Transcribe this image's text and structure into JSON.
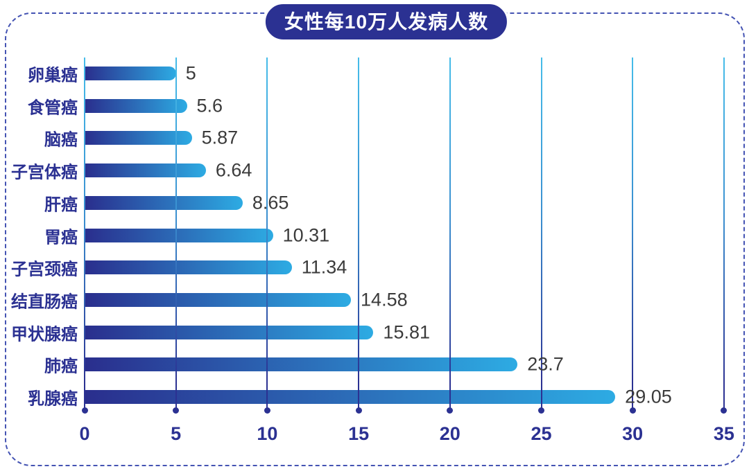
{
  "page": {
    "background": "#ffffff",
    "frame_border_color": "#4453b3"
  },
  "chart_data": {
    "type": "bar",
    "orientation": "horizontal",
    "title": "女性每10万人发病人数",
    "categories": [
      "卵巢癌",
      "食管癌",
      "脑癌",
      "子宫体癌",
      "肝癌",
      "胃癌",
      "子宫颈癌",
      "结直肠癌",
      "甲状腺癌",
      "肺癌",
      "乳腺癌"
    ],
    "values": [
      5,
      5.6,
      5.87,
      6.64,
      8.65,
      10.31,
      11.34,
      14.58,
      15.81,
      23.7,
      29.05
    ],
    "value_labels": [
      "5",
      "5.6",
      "5.87",
      "6.64",
      "8.65",
      "10.31",
      "11.34",
      "14.58",
      "15.81",
      "23.7",
      "29.05"
    ],
    "x_ticks": [
      0,
      5,
      10,
      15,
      20,
      25,
      30,
      35
    ],
    "xlim": [
      0,
      35
    ],
    "grid": true,
    "legend": "none",
    "colors": {
      "bar_gradient_start": "#2a2e8d",
      "bar_gradient_end": "#2dabe3",
      "gridline_top": "#45bce9",
      "gridline_bottom": "#2b3192",
      "category_label": "#2b3192",
      "value_label": "#3b3b3b",
      "tick_label": "#2b3192",
      "title_background": "#2b3192",
      "title_text": "#ffffff"
    }
  }
}
